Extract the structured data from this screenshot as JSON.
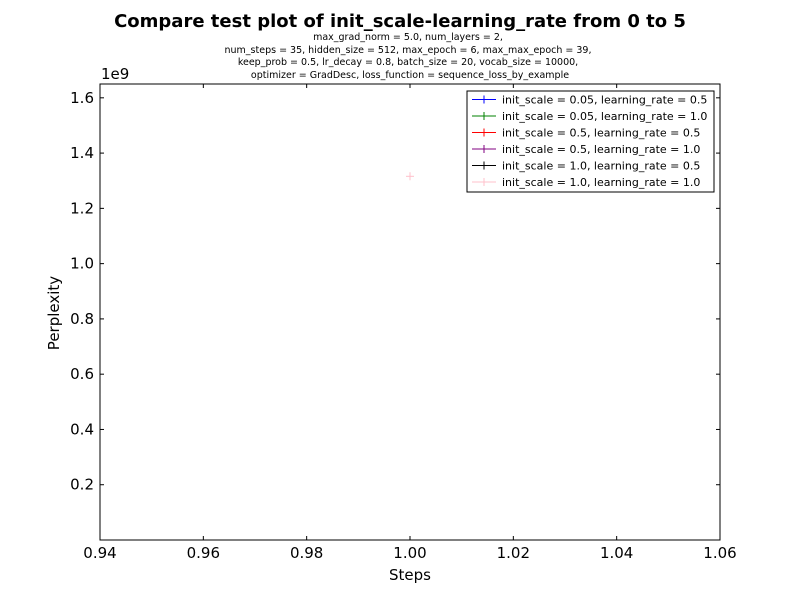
{
  "chart_data": {
    "type": "line",
    "title": "Compare test plot of init_scale-learning_rate from 0 to 5",
    "subtitle_lines": [
      "max_grad_norm = 5.0, num_layers = 2,",
      "num_steps = 35, hidden_size = 512, max_epoch = 6, max_max_epoch = 39,",
      "keep_prob = 0.5, lr_decay = 0.8, batch_size = 20, vocab_size = 10000,",
      "optimizer = GradDesc, loss_function = sequence_loss_by_example"
    ],
    "xlabel": "Steps",
    "ylabel": "Perplexity",
    "xlim": [
      0.94,
      1.06
    ],
    "ylim": [
      0,
      1650000000.0
    ],
    "x_ticks": [
      0.94,
      0.96,
      0.98,
      1.0,
      1.02,
      1.04,
      1.06
    ],
    "x_tick_labels": [
      "0.94",
      "0.96",
      "0.98",
      "1.00",
      "1.02",
      "1.04",
      "1.06"
    ],
    "y_ticks": [
      200000000.0,
      400000000.0,
      600000000.0,
      800000000.0,
      1000000000.0,
      1200000000.0,
      1400000000.0,
      1600000000.0
    ],
    "y_tick_labels": [
      "0.2",
      "0.4",
      "0.6",
      "0.8",
      "1.0",
      "1.2",
      "1.4",
      "1.6"
    ],
    "y_offset_label": "1e9",
    "grid": false,
    "legend_position": "top-right",
    "marker": "+",
    "series": [
      {
        "name": "init_scale = 0.05, learning_rate = 0.5",
        "color": "#0000ff",
        "points": []
      },
      {
        "name": "init_scale = 0.05, learning_rate = 1.0",
        "color": "#008000",
        "points": []
      },
      {
        "name": "init_scale = 0.5, learning_rate = 0.5",
        "color": "#ff0000",
        "points": []
      },
      {
        "name": "init_scale = 0.5, learning_rate = 1.0",
        "color": "#800080",
        "points": []
      },
      {
        "name": "init_scale = 1.0, learning_rate = 0.5",
        "color": "#000000",
        "points": []
      },
      {
        "name": "init_scale = 1.0, learning_rate = 1.0",
        "color": "#ffc0cb",
        "points": [
          [
            1.0,
            1316000000.0
          ]
        ]
      }
    ]
  }
}
